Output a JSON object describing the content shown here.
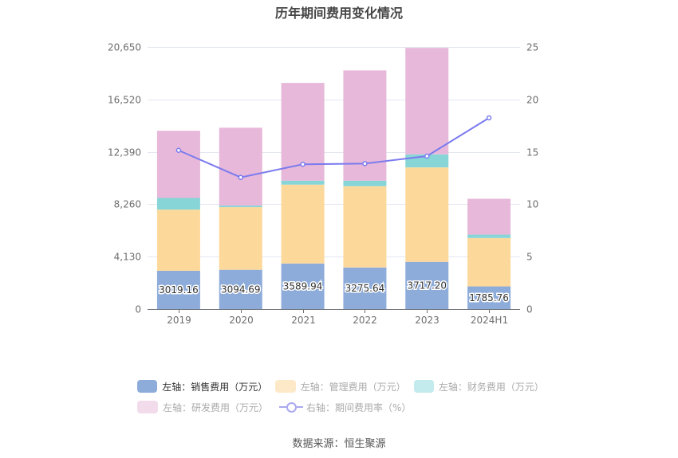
{
  "chart_data": {
    "type": "bar",
    "stacked": true,
    "title": "历年期间费用变化情况",
    "categories": [
      "2019",
      "2020",
      "2021",
      "2022",
      "2023",
      "2024H1"
    ],
    "y_left": {
      "ticks": [
        0,
        4130,
        8260,
        12390,
        16520,
        20650
      ],
      "tick_labels": [
        "0",
        "4,130",
        "8,260",
        "12,390",
        "16,520",
        "20,650"
      ],
      "range": [
        0,
        20650
      ]
    },
    "y_right": {
      "ticks": [
        0,
        5,
        10,
        15,
        20,
        25
      ],
      "tick_labels": [
        "0",
        "5",
        "10",
        "15",
        "20",
        "25"
      ],
      "range": [
        0,
        25
      ]
    },
    "grid": true,
    "legend_position": "bottom",
    "series": [
      {
        "name": "左轴：销售费用（万元）",
        "type": "bar",
        "axis": "left",
        "color": "#8eacda",
        "values": [
          3019.16,
          3094.69,
          3589.94,
          3275.64,
          3717.2,
          1785.76
        ],
        "labels": [
          "3019.16",
          "3094.69",
          "3589.94",
          "3275.64",
          "3717.20",
          "1785.76"
        ]
      },
      {
        "name": "左轴：管理费用（万元）",
        "type": "bar",
        "axis": "left",
        "color": "#fdd89b",
        "values": [
          4814,
          4934,
          6214,
          6403,
          7445,
          3810
        ]
      },
      {
        "name": "左轴：财务费用（万元）",
        "type": "bar",
        "axis": "left",
        "color": "#88d5d8",
        "values": [
          923,
          126,
          314,
          439,
          1029,
          270
        ]
      },
      {
        "name": "左轴：研发费用（万元）",
        "type": "bar",
        "axis": "left",
        "color": "#e7b8d9",
        "values": [
          5291,
          6133,
          7702,
          8687,
          8386,
          2825
        ]
      },
      {
        "name": "右轴：期间费用率（%）",
        "type": "line",
        "axis": "right",
        "color": "#7b7bef",
        "values": [
          15.14,
          12.56,
          13.81,
          13.88,
          14.59,
          18.24
        ]
      }
    ]
  },
  "legend": {
    "items": [
      {
        "label": "左轴：销售费用（万元）",
        "color": "#8eacda",
        "active": true
      },
      {
        "label": "左轴：管理费用（万元）",
        "color": "#fde9c8",
        "active": false
      },
      {
        "label": "左轴：财务费用（万元）",
        "color": "#c3eaec",
        "active": false
      },
      {
        "label": "左轴：研发费用（万元）",
        "color": "#f2dbeb",
        "active": false
      },
      {
        "label": "右轴：期间费用率（%）",
        "color": "#a9a9ee",
        "active": false
      }
    ]
  },
  "source": "数据来源：恒生聚源"
}
